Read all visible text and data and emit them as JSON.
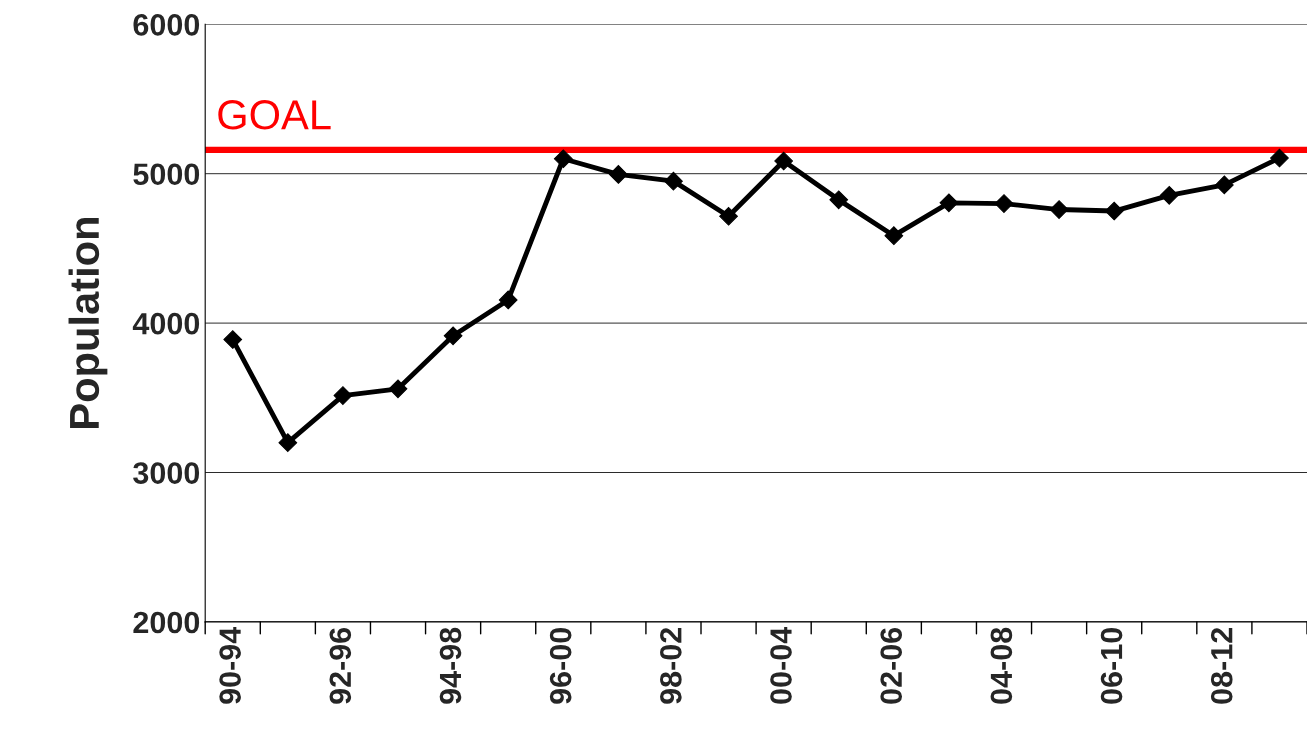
{
  "chart_data": {
    "type": "line",
    "ylabel": "Population",
    "categories": [
      "90-94",
      null,
      "92-96",
      null,
      "94-98",
      null,
      "96-00",
      null,
      "98-02",
      null,
      "00-04",
      null,
      "02-06",
      null,
      "04-08",
      null,
      "06-10",
      null,
      "08-12",
      null
    ],
    "series": [
      {
        "color": "#000000",
        "values": [
          3890,
          3200,
          3515,
          3560,
          3915,
          4155,
          5100,
          4995,
          4950,
          4715,
          5085,
          4825,
          4585,
          4805,
          4800,
          4760,
          4750,
          4855,
          4925,
          5105
        ]
      }
    ],
    "ylim": [
      2000,
      6000
    ],
    "yticks": [
      2000,
      3000,
      4000,
      5000,
      6000
    ],
    "grid": "y",
    "marker": "diamond",
    "line_style": "solid",
    "ref_lines": [
      {
        "axis": "y",
        "value": 5160,
        "label": "GOAL",
        "color": "#ff0000"
      }
    ]
  }
}
